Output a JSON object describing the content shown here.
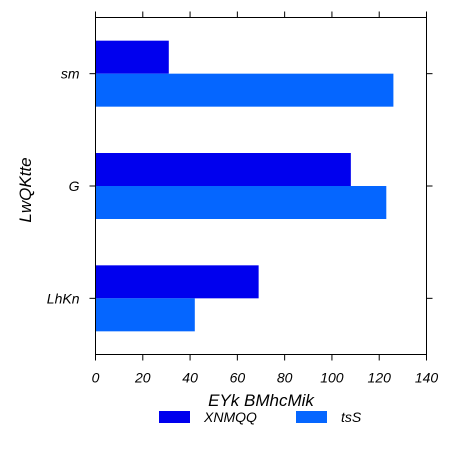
{
  "chart_data": {
    "type": "bar",
    "orientation": "horizontal",
    "categories": [
      "LhKn",
      "G",
      "sm"
    ],
    "series": [
      {
        "name": "XNMQQ",
        "color": "#0000ee",
        "values": [
          69,
          108,
          31
        ]
      },
      {
        "name": "tsS",
        "color": "#0566ff",
        "values": [
          42,
          123,
          126
        ]
      }
    ],
    "xlabel": "EYk BMhcMik",
    "ylabel": "LwQKtte",
    "xlim": [
      0,
      140
    ],
    "xticks": [
      "0",
      "20",
      "40",
      "60",
      "80",
      "100",
      "120",
      "140"
    ],
    "grid": false,
    "legend_position": "bottom-center"
  }
}
